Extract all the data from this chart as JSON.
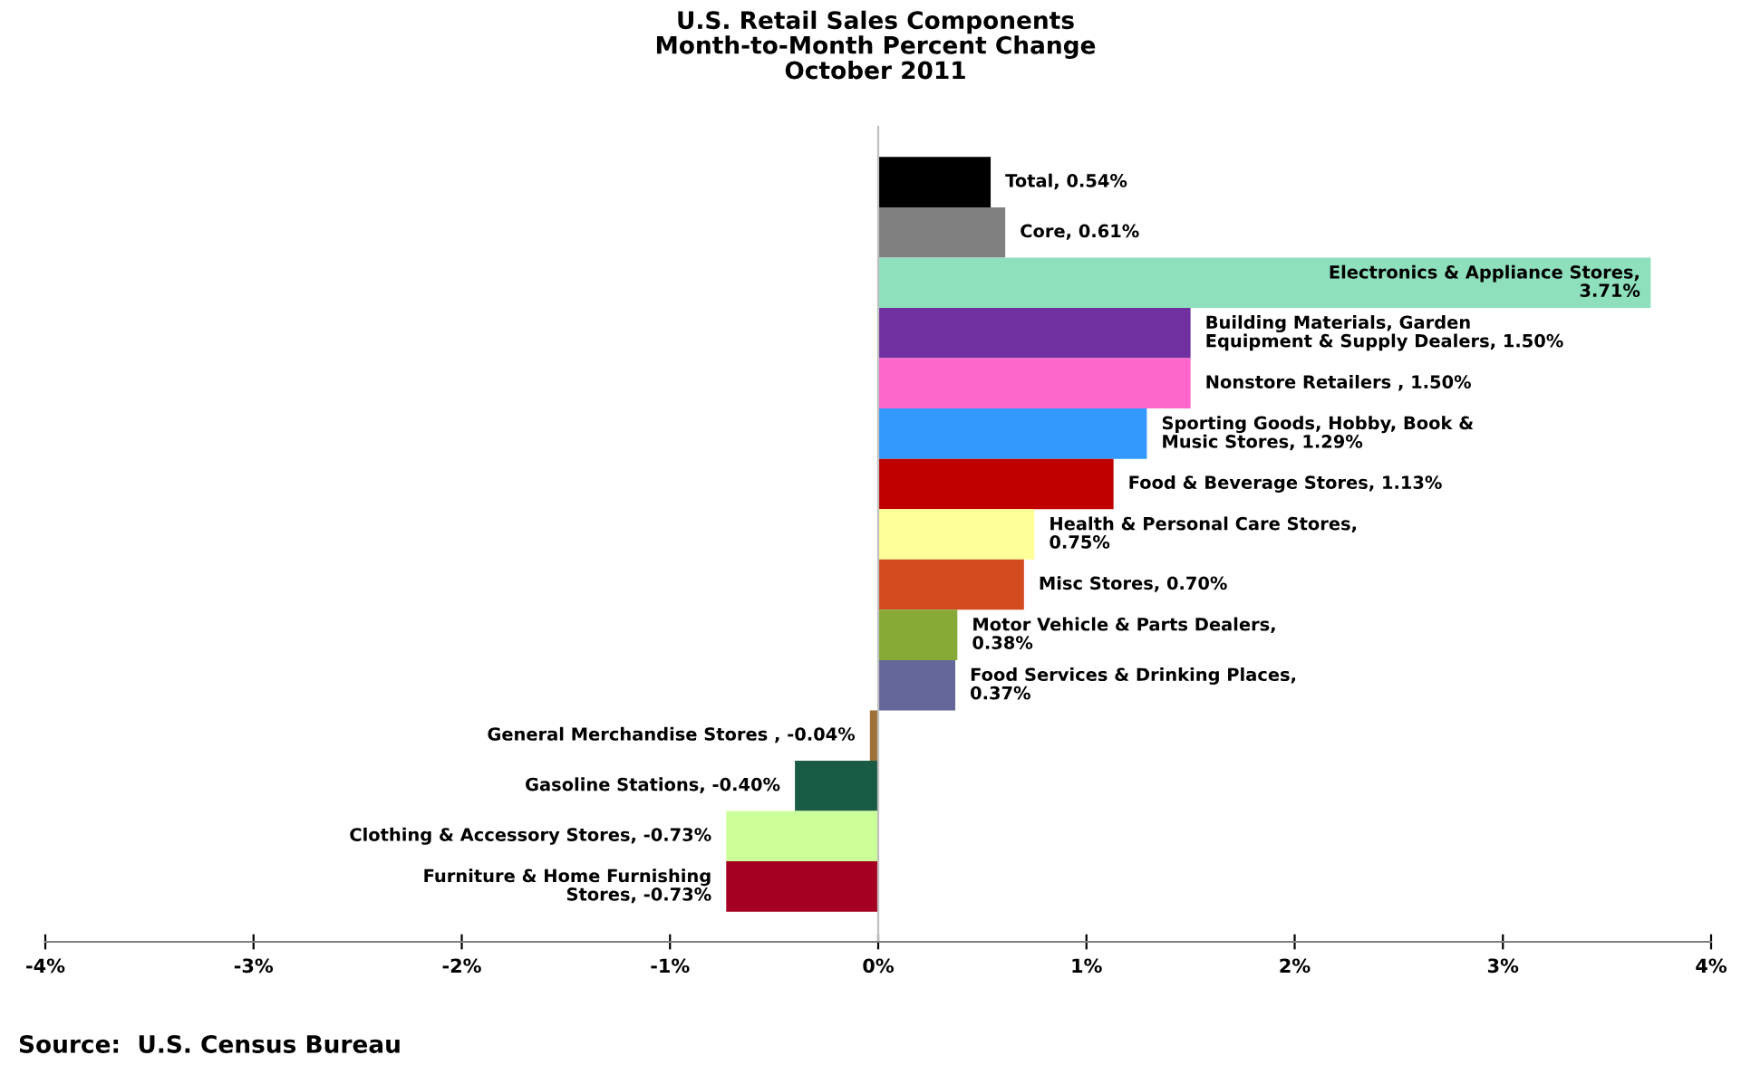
{
  "chart_data": {
    "type": "bar",
    "orientation": "horizontal",
    "title": "U.S. Retail Sales Components\nMonth-to-Month Percent Change\nOctober 2011",
    "categories": [
      null,
      null,
      null,
      null,
      null,
      null,
      null,
      null,
      null,
      null,
      null,
      null,
      null,
      null,
      null
    ],
    "values": [
      0.54,
      0.61,
      3.71,
      1.5,
      1.5,
      1.29,
      1.13,
      0.75,
      0.7,
      0.38,
      0.37,
      -0.04,
      -0.4,
      -0.73,
      -0.73
    ],
    "colors": [
      "#000000",
      "#808080",
      "#8ee0bd",
      "#7030a0",
      "#ff66cc",
      "#3399ff",
      "#c00000",
      "#ffff99",
      "#d24b1e",
      "#86aa35",
      "#65669a",
      "#a0703a",
      "#1a5b45",
      "#ccff99",
      "#a50021"
    ],
    "value_labels": [
      "Total, 0.54%",
      "Core, 0.61%",
      "Electronics & Appliance Stores,\n3.71%",
      "Building Materials, Garden\nEquipment & Supply Dealers, 1.50%",
      "Nonstore Retailers , 1.50%",
      "Sporting Goods, Hobby, Book &\nMusic Stores, 1.29%",
      "Food & Beverage Stores, 1.13%",
      "Health & Personal Care Stores,\n0.75%",
      "Misc Stores, 0.70%",
      "Motor Vehicle & Parts Dealers,\n0.38%",
      "Food Services & Drinking Places,\n0.37%",
      "General Merchandise Stores , -0.04%",
      "Gasoline Stations, -0.40%",
      "Clothing & Accessory Stores, -0.73%",
      "Furniture & Home Furnishing\nStores, -0.73%"
    ],
    "xlim": [
      -4,
      4
    ],
    "xticks": [
      {
        "value": -4,
        "label": "-4%"
      },
      {
        "value": -3,
        "label": "-3%"
      },
      {
        "value": -2,
        "label": "-2%"
      },
      {
        "value": -1,
        "label": "-1%"
      },
      {
        "value": 0,
        "label": "0%"
      },
      {
        "value": 1,
        "label": "1%"
      },
      {
        "value": 2,
        "label": "2%"
      },
      {
        "value": 3,
        "label": "3%"
      },
      {
        "value": 4,
        "label": "4%"
      }
    ],
    "annotations": [
      "Source:  U.S. Census Bureau"
    ]
  }
}
